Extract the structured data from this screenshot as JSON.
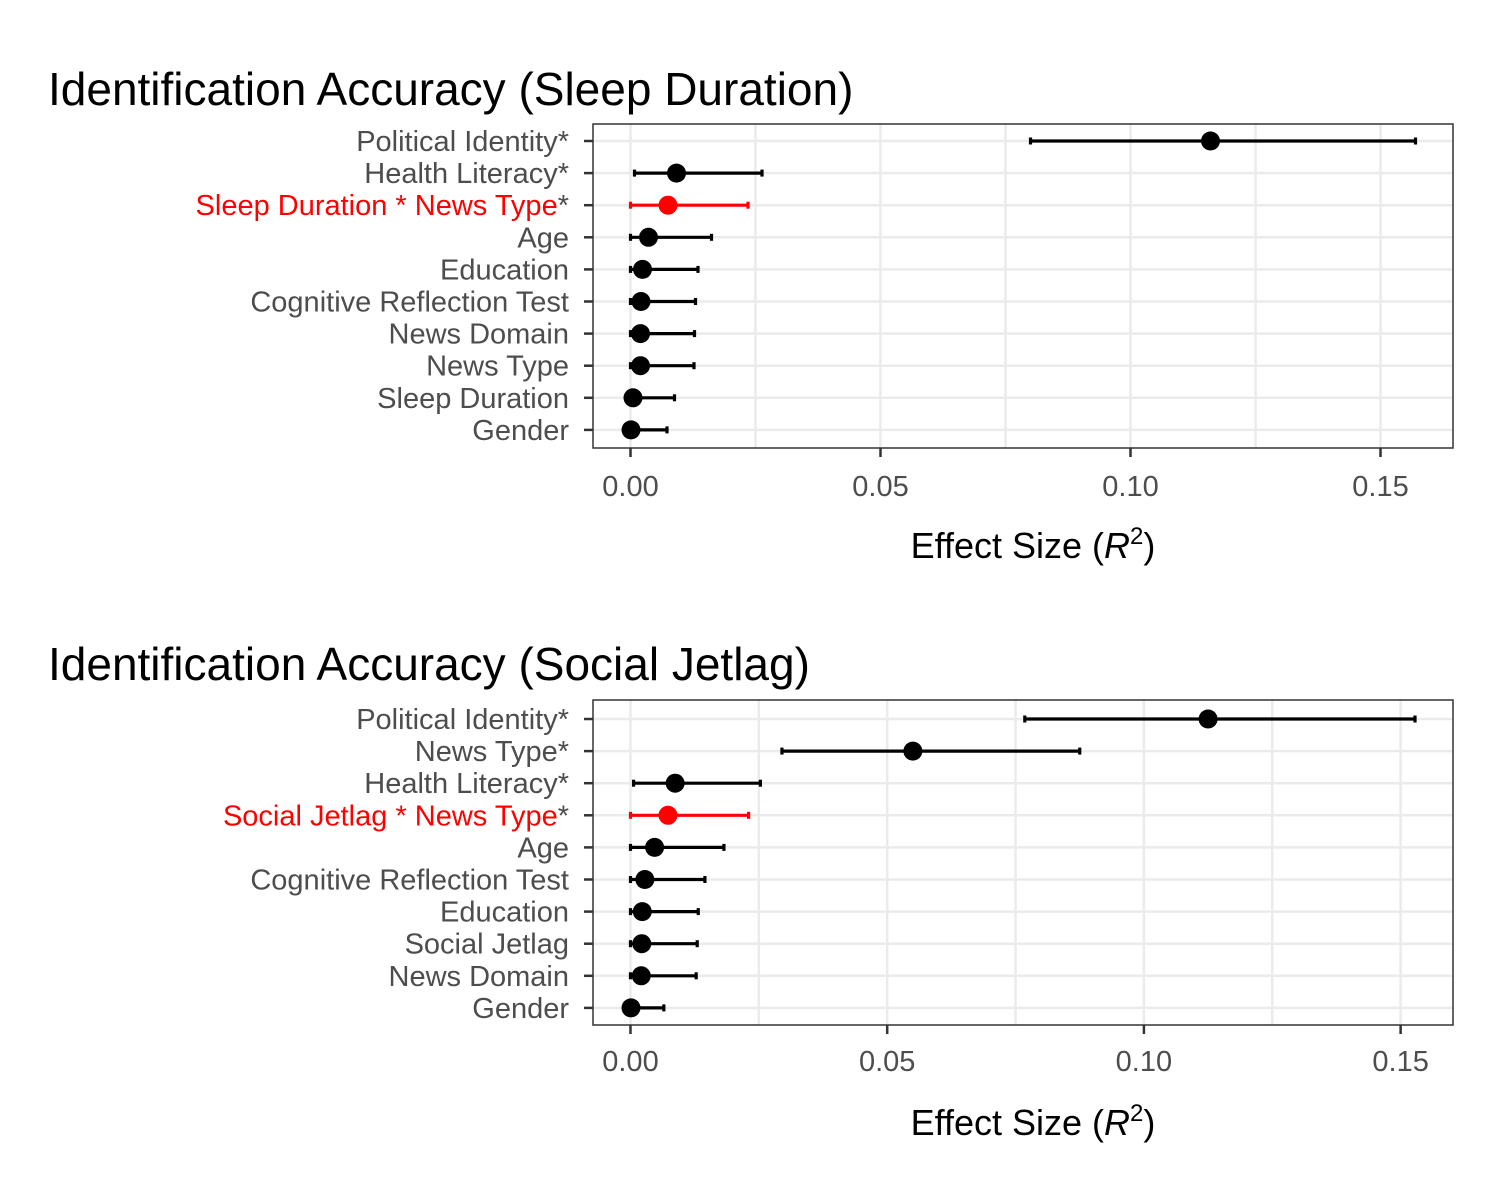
{
  "chart_data": [
    {
      "type": "scatter",
      "subtype": "dot-whisker",
      "title": "Identification Accuracy (Sleep Duration)",
      "xlabel_text": "Effect Size (",
      "xlabel_math": "R",
      "xlabel_sup": "2",
      "xlabel_close": ")",
      "xlim": [
        -0.0075,
        0.1645
      ],
      "xticks": [
        0.0,
        0.05,
        0.1,
        0.15
      ],
      "xtick_labels": [
        "0.00",
        "0.05",
        "0.10",
        "0.15"
      ],
      "grid": true,
      "highlight_color": "#ff0000",
      "default_color": "#000000",
      "categories": [
        {
          "label": "Political Identity",
          "suffix": "*",
          "estimate": 0.116,
          "low": 0.08,
          "high": 0.157,
          "highlight": false
        },
        {
          "label": "Health Literacy",
          "suffix": "*",
          "estimate": 0.0092,
          "low": 0.0008,
          "high": 0.0263,
          "highlight": false
        },
        {
          "label": "Sleep Duration * News Type",
          "suffix": "*",
          "estimate": 0.0075,
          "low": 0.0,
          "high": 0.0235,
          "highlight": true
        },
        {
          "label": "Age",
          "suffix": "",
          "estimate": 0.0036,
          "low": 0.0,
          "high": 0.0162,
          "highlight": false
        },
        {
          "label": "Education",
          "suffix": "",
          "estimate": 0.0024,
          "low": 0.0,
          "high": 0.0135,
          "highlight": false
        },
        {
          "label": "Cognitive Reflection Test",
          "suffix": "",
          "estimate": 0.0021,
          "low": 0.0,
          "high": 0.013,
          "highlight": false
        },
        {
          "label": "News Domain",
          "suffix": "",
          "estimate": 0.002,
          "low": 0.0,
          "high": 0.0128,
          "highlight": false
        },
        {
          "label": "News Type",
          "suffix": "",
          "estimate": 0.002,
          "low": 0.0,
          "high": 0.0127,
          "highlight": false
        },
        {
          "label": "Sleep Duration",
          "suffix": "",
          "estimate": 0.0005,
          "low": 0.0,
          "high": 0.0088,
          "highlight": false
        },
        {
          "label": "Gender",
          "suffix": "",
          "estimate": 0.0001,
          "low": 0.0,
          "high": 0.0073,
          "highlight": false
        }
      ]
    },
    {
      "type": "scatter",
      "subtype": "dot-whisker",
      "title": "Identification Accuracy (Social Jetlag)",
      "xlabel_text": "Effect Size (",
      "xlabel_math": "R",
      "xlabel_sup": "2",
      "xlabel_close": ")",
      "xlim": [
        -0.0073,
        0.1602
      ],
      "xticks": [
        0.0,
        0.05,
        0.1,
        0.15
      ],
      "xtick_labels": [
        "0.00",
        "0.05",
        "0.10",
        "0.15"
      ],
      "grid": true,
      "highlight_color": "#ff0000",
      "default_color": "#000000",
      "categories": [
        {
          "label": "Political Identity",
          "suffix": "*",
          "estimate": 0.1125,
          "low": 0.0768,
          "high": 0.1528,
          "highlight": false
        },
        {
          "label": "News Type",
          "suffix": "*",
          "estimate": 0.055,
          "low": 0.0295,
          "high": 0.0875,
          "highlight": false
        },
        {
          "label": "Health Literacy",
          "suffix": "*",
          "estimate": 0.0087,
          "low": 0.0006,
          "high": 0.0253,
          "highlight": false
        },
        {
          "label": "Social Jetlag * News Type",
          "suffix": "*",
          "estimate": 0.0073,
          "low": 0.0,
          "high": 0.023,
          "highlight": true
        },
        {
          "label": "Age",
          "suffix": "",
          "estimate": 0.0047,
          "low": 0.0,
          "high": 0.0182,
          "highlight": false
        },
        {
          "label": "Cognitive Reflection Test",
          "suffix": "",
          "estimate": 0.0028,
          "low": 0.0,
          "high": 0.0145,
          "highlight": false
        },
        {
          "label": "Education",
          "suffix": "",
          "estimate": 0.0023,
          "low": 0.0,
          "high": 0.0132,
          "highlight": false
        },
        {
          "label": "Social Jetlag",
          "suffix": "",
          "estimate": 0.0022,
          "low": 0.0,
          "high": 0.013,
          "highlight": false
        },
        {
          "label": "News Domain",
          "suffix": "",
          "estimate": 0.0021,
          "low": 0.0,
          "high": 0.0128,
          "highlight": false
        },
        {
          "label": "Gender",
          "suffix": "",
          "estimate": 0.0001,
          "low": 0.0,
          "high": 0.0065,
          "highlight": false
        }
      ]
    }
  ]
}
